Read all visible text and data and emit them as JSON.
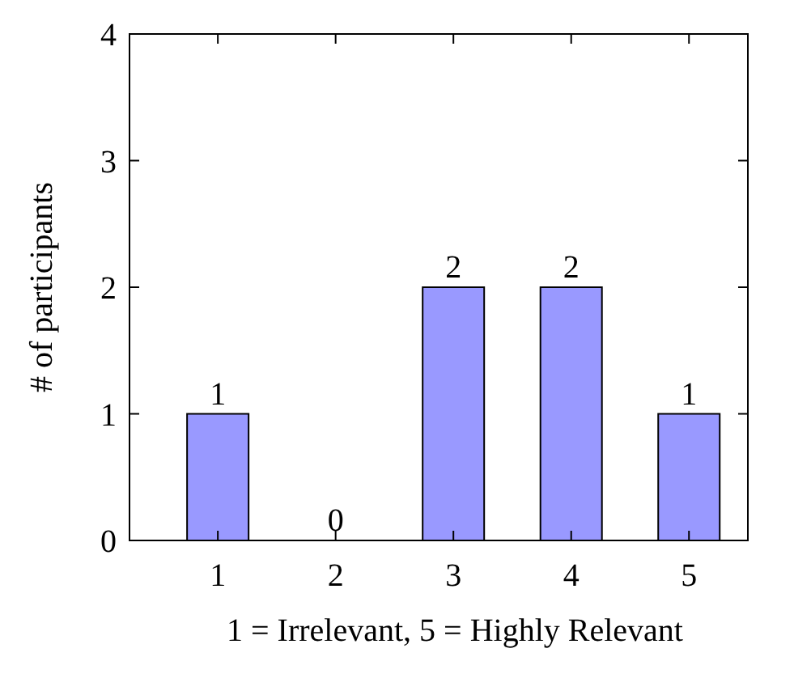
{
  "chart_data": {
    "type": "bar",
    "xlabel": "1 = Irrelevant, 5 = Highly Relevant",
    "ylabel": "# of participants",
    "categories": [
      "1",
      "2",
      "3",
      "4",
      "5"
    ],
    "values": [
      1,
      0,
      2,
      2,
      1
    ],
    "color": "#9999ff",
    "ylim": [
      0,
      4
    ],
    "yticks": [
      0,
      1,
      2,
      3,
      4
    ],
    "data_labels": true,
    "grid": false
  }
}
